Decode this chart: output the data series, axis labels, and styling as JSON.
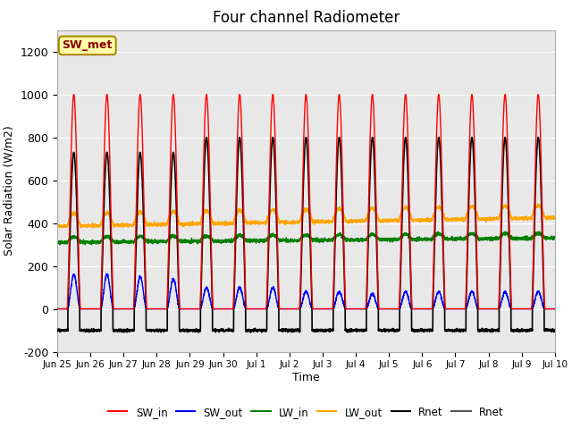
{
  "title": "Four channel Radiometer",
  "xlabel": "Time",
  "ylabel": "Solar Radiation (W/m2)",
  "ylim": [
    -200,
    1300
  ],
  "yticks": [
    -200,
    0,
    200,
    400,
    600,
    800,
    1000,
    1200
  ],
  "fig_bg_color": "#ffffff",
  "plot_bg_color": "#e8e8e8",
  "annotation_label": "SW_met",
  "annotation_bg": "#ffffaa",
  "annotation_border": "#aa8800",
  "x_tick_labels": [
    "Jun 25",
    "Jun 26",
    "Jun 27",
    "Jun 28",
    "Jun 29",
    "Jun 30",
    "Jul 1",
    "Jul 2",
    "Jul 3",
    "Jul 4",
    "Jul 5",
    "Jul 6",
    "Jul 7",
    "Jul 8",
    "Jul 9",
    "Jul 10"
  ],
  "legend_entries": [
    "SW_in",
    "SW_out",
    "LW_in",
    "LW_out",
    "Rnet",
    "Rnet"
  ],
  "legend_colors": [
    "red",
    "blue",
    "green",
    "orange",
    "black",
    "#555555"
  ],
  "n_days": 15,
  "sw_in_peak": 1000,
  "sw_out_peak_early": 160,
  "sw_out_peak_late": 80,
  "lw_in_base": 320,
  "lw_out_base": 390,
  "rnet_peak_early": 730,
  "rnet_peak_late": 800,
  "rnet_night": -100
}
